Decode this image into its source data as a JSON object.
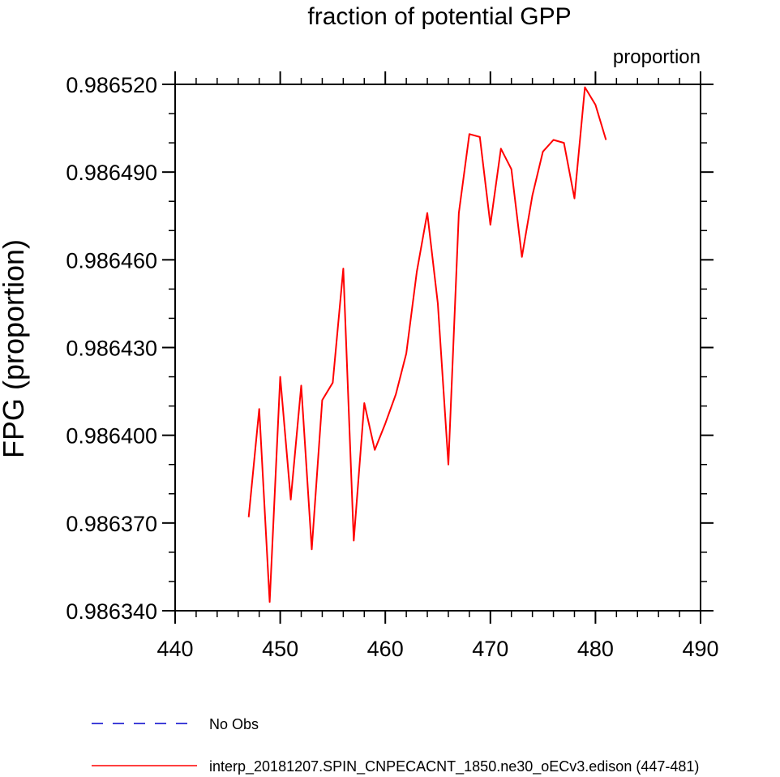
{
  "chart_data": {
    "type": "line",
    "title": "fraction of potential GPP",
    "units": "proportion",
    "ylabel": "FPG  (proportion)",
    "xlabel": "",
    "xlim": [
      440,
      490
    ],
    "ylim": [
      0.98634,
      0.98652
    ],
    "x_ticks": [
      440,
      450,
      460,
      470,
      480,
      490
    ],
    "x_tick_labels": [
      "440",
      "450",
      "460",
      "470",
      "480",
      "490"
    ],
    "y_ticks": [
      0.98634,
      0.98637,
      0.9864,
      0.98643,
      0.98646,
      0.98649,
      0.98652
    ],
    "y_tick_labels": [
      "0.986340",
      "0.986370",
      "0.986400",
      "0.986430",
      "0.986460",
      "0.986490",
      "0.986520"
    ],
    "series": [
      {
        "name": "interp_20181207.SPIN_CNPECACNT_1850.ne30_oECv3.edison (447-481)",
        "color": "#ff0000",
        "dash": "solid",
        "x": [
          447,
          448,
          449,
          450,
          451,
          452,
          453,
          454,
          455,
          456,
          457,
          458,
          459,
          460,
          461,
          462,
          463,
          464,
          465,
          466,
          467,
          468,
          469,
          470,
          471,
          472,
          473,
          474,
          475,
          476,
          477,
          478,
          479,
          480,
          481
        ],
        "values": [
          0.986372,
          0.986409,
          0.986343,
          0.98642,
          0.986378,
          0.986417,
          0.986361,
          0.986412,
          0.986418,
          0.986457,
          0.986364,
          0.986411,
          0.986395,
          0.986404,
          0.986414,
          0.986428,
          0.986456,
          0.986476,
          0.986445,
          0.98639,
          0.986476,
          0.986503,
          0.986502,
          0.986472,
          0.986498,
          0.986491,
          0.986461,
          0.986482,
          0.986497,
          0.986501,
          0.9865,
          0.986481,
          0.986519,
          0.986513,
          0.986501
        ]
      }
    ],
    "legend": [
      {
        "label": "No Obs",
        "color": "#0000cc",
        "dash": "dashed"
      },
      {
        "label": "interp_20181207.SPIN_CNPECACNT_1850.ne30_oECv3.edison (447-481)",
        "color": "#ff0000",
        "dash": "solid"
      }
    ],
    "legend_position": "bottom"
  }
}
